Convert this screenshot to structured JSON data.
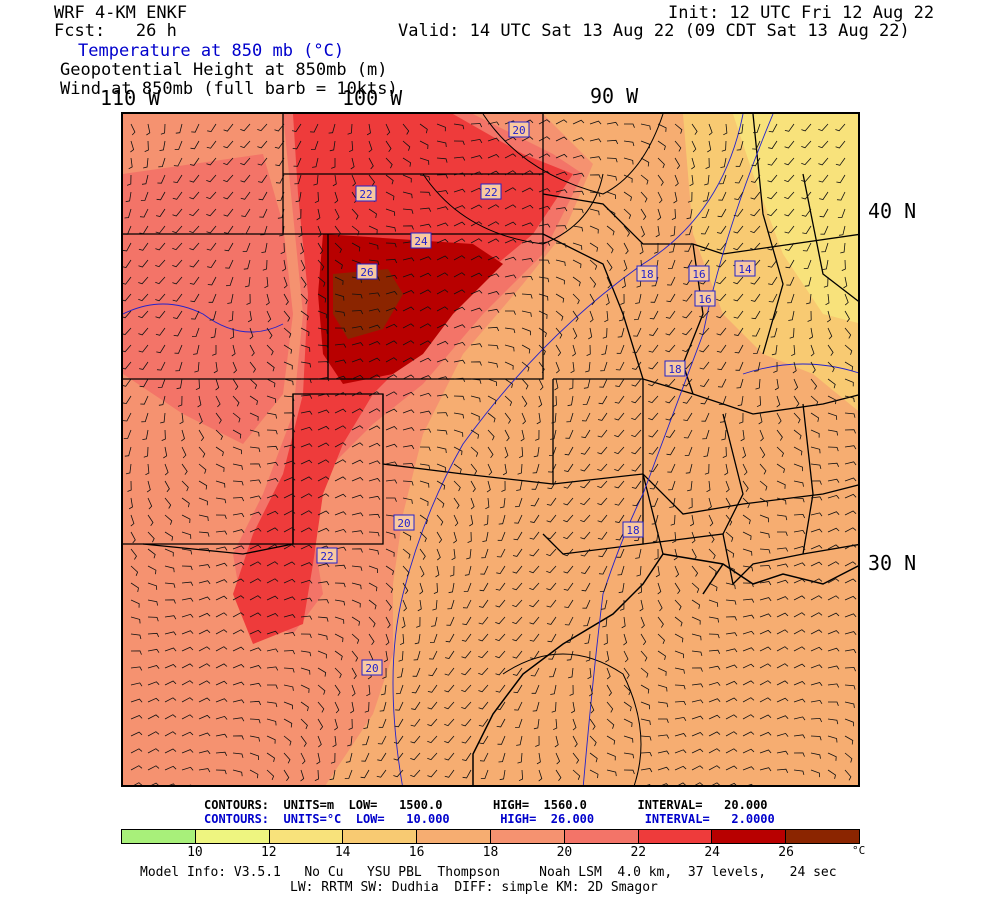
{
  "header": {
    "model": "WRF 4-KM ENKF",
    "forecast": "Fcst:   26 h",
    "init": "Init: 12 UTC Fri 12 Aug 22",
    "valid": "Valid: 14 UTC Sat 13 Aug 22 (09 CDT Sat 13 Aug 22)",
    "field1": "Temperature at 850 mb (°C)",
    "field2": "Geopotential Height at 850mb (m)",
    "field3": "Wind at 850mb (full barb = 10kts)"
  },
  "axes": {
    "lon_labels": [
      "110 W",
      "100 W",
      "90 W"
    ],
    "lat_labels": [
      "40 N",
      "30 N"
    ]
  },
  "contour_labels": [
    "20",
    "22",
    "22",
    "24",
    "26",
    "18",
    "16",
    "14",
    "16",
    "18",
    "20",
    "18",
    "22",
    "20"
  ],
  "contours_info": {
    "height": "CONTOURS:  UNITS=m  LOW=   1500.0       HIGH=  1560.0       INTERVAL=   20.000",
    "temp": "CONTOURS:  UNITS=°C  LOW=   10.000       HIGH=  26.000       INTERVAL=   2.0000"
  },
  "colorbar": {
    "colors": [
      "#a8f07a",
      "#eef580",
      "#f8e27b",
      "#f8ca72",
      "#f6ad71",
      "#f59270",
      "#f37468",
      "#ee3b3b",
      "#b80000",
      "#8b2500"
    ],
    "ticks": [
      "10",
      "12",
      "14",
      "16",
      "18",
      "20",
      "22",
      "24",
      "26"
    ],
    "unit": "°C"
  },
  "footer": {
    "line1": "Model Info: V3.5.1   No Cu   YSU PBL  Thompson     Noah LSM  4.0 km,  37 levels,   24 sec",
    "line2": "LW: RRTM SW: Dudhia  DIFF: simple KM: 2D Smagor"
  }
}
